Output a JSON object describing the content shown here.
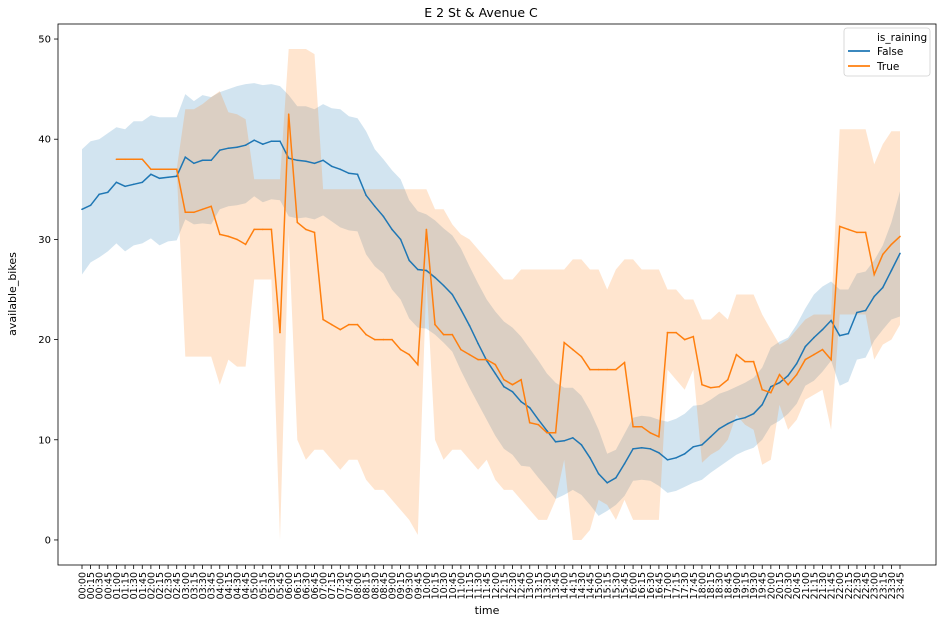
{
  "chart_data": {
    "type": "line",
    "title": "E 2 St & Avenue C",
    "xlabel": "time",
    "ylabel": "available_bikes",
    "ylim": [
      -2.5,
      51.5
    ],
    "yticks": [
      0,
      10,
      20,
      30,
      40,
      50
    ],
    "grid": false,
    "legend": {
      "title": "is_raining",
      "placement": "top-right",
      "entries": [
        "False",
        "True"
      ]
    },
    "x": [
      "00:00",
      "00:15",
      "00:30",
      "00:45",
      "01:00",
      "01:15",
      "01:30",
      "01:45",
      "02:00",
      "02:15",
      "02:30",
      "02:45",
      "03:00",
      "03:15",
      "03:30",
      "03:45",
      "04:00",
      "04:15",
      "04:30",
      "04:45",
      "05:00",
      "05:15",
      "05:30",
      "05:45",
      "06:00",
      "06:15",
      "06:30",
      "06:45",
      "07:00",
      "07:15",
      "07:30",
      "07:45",
      "08:00",
      "08:15",
      "08:30",
      "08:45",
      "09:00",
      "09:15",
      "09:30",
      "09:45",
      "10:00",
      "10:15",
      "10:30",
      "10:45",
      "11:00",
      "11:15",
      "11:30",
      "11:45",
      "12:00",
      "12:15",
      "12:30",
      "12:45",
      "13:00",
      "13:15",
      "13:30",
      "13:45",
      "14:00",
      "14:15",
      "14:30",
      "14:45",
      "15:00",
      "15:15",
      "15:30",
      "15:45",
      "16:00",
      "16:15",
      "16:30",
      "16:45",
      "17:00",
      "17:15",
      "17:30",
      "17:45",
      "18:00",
      "18:15",
      "18:30",
      "18:45",
      "19:00",
      "19:15",
      "19:30",
      "19:45",
      "20:00",
      "20:15",
      "20:30",
      "20:45",
      "21:00",
      "21:15",
      "21:30",
      "21:45",
      "22:00",
      "22:15",
      "22:30",
      "22:45",
      "23:00",
      "23:15",
      "23:30",
      "23:45"
    ],
    "series": [
      {
        "name": "False",
        "color": "#1f77b4",
        "values": [
          33.0,
          33.4,
          34.5,
          34.7,
          35.7,
          35.3,
          35.5,
          35.7,
          36.5,
          36.1,
          36.2,
          36.3,
          38.2,
          37.6,
          37.9,
          37.9,
          38.9,
          39.1,
          39.2,
          39.4,
          39.9,
          39.5,
          39.8,
          39.8,
          38.1,
          37.9,
          37.8,
          37.6,
          37.9,
          37.3,
          37.0,
          36.6,
          36.5,
          34.4,
          33.3,
          32.3,
          31.0,
          30.0,
          27.9,
          27.0,
          26.9,
          26.2,
          25.4,
          24.5,
          23.0,
          21.4,
          19.6,
          17.9,
          16.6,
          15.3,
          14.8,
          13.8,
          13.2,
          12.0,
          10.9,
          9.8,
          9.9,
          10.2,
          9.5,
          8.2,
          6.6,
          5.7,
          6.2,
          7.6,
          9.1,
          9.2,
          9.1,
          8.7,
          8.0,
          8.2,
          8.6,
          9.3,
          9.5,
          10.3,
          11.1,
          11.6,
          12.0,
          12.2,
          12.6,
          13.5,
          15.3,
          15.7,
          16.4,
          17.6,
          19.3,
          20.2,
          21.0,
          21.9,
          20.4,
          20.6,
          22.7,
          22.9,
          24.3,
          25.2,
          26.9,
          28.6
        ],
        "ci_upper": [
          39.0,
          39.8,
          40.0,
          40.6,
          41.2,
          41.0,
          41.8,
          41.8,
          42.4,
          42.2,
          42.2,
          42.2,
          44.5,
          43.8,
          44.4,
          44.2,
          44.7,
          45.0,
          45.3,
          45.5,
          45.6,
          45.4,
          45.5,
          45.3,
          44.4,
          43.3,
          43.3,
          43.0,
          43.5,
          43.1,
          43.0,
          42.3,
          42.1,
          40.8,
          39.0,
          38.0,
          36.9,
          36.0,
          33.9,
          32.8,
          32.5,
          31.9,
          31.1,
          30.4,
          29.1,
          27.3,
          25.6,
          24.0,
          22.8,
          21.8,
          21.2,
          20.3,
          19.1,
          17.9,
          16.6,
          15.7,
          15.2,
          15.2,
          14.4,
          12.9,
          11.0,
          8.6,
          9.0,
          10.6,
          12.2,
          12.4,
          12.3,
          12.0,
          11.8,
          12.1,
          12.6,
          13.4,
          13.5,
          14.0,
          14.6,
          14.9,
          15.3,
          15.7,
          16.2,
          17.2,
          19.2,
          19.8,
          20.2,
          21.5,
          23.1,
          24.5,
          25.3,
          25.8,
          25.0,
          25.0,
          26.6,
          26.8,
          27.9,
          29.4,
          31.7,
          34.8
        ],
        "ci_lower": [
          26.5,
          27.7,
          28.2,
          28.8,
          29.6,
          28.8,
          29.4,
          29.6,
          30.1,
          29.4,
          29.8,
          29.9,
          32.0,
          31.5,
          31.6,
          31.5,
          33.0,
          33.3,
          33.4,
          33.6,
          34.3,
          33.7,
          34.0,
          33.9,
          32.3,
          32.1,
          32.2,
          32.0,
          32.4,
          31.8,
          31.2,
          30.9,
          30.8,
          28.5,
          27.3,
          26.6,
          25.0,
          24.0,
          22.1,
          21.2,
          21.1,
          20.5,
          19.7,
          18.8,
          16.9,
          15.2,
          13.6,
          12.0,
          10.4,
          9.1,
          8.5,
          7.4,
          7.3,
          6.2,
          5.2,
          4.1,
          4.5,
          5.0,
          4.5,
          3.5,
          2.4,
          2.9,
          3.5,
          4.4,
          5.9,
          6.0,
          5.9,
          5.4,
          4.7,
          4.9,
          5.3,
          5.7,
          6.0,
          6.7,
          7.3,
          7.9,
          8.5,
          8.9,
          9.2,
          10.0,
          11.4,
          11.9,
          12.6,
          13.6,
          15.4,
          15.9,
          16.8,
          17.9,
          15.4,
          15.8,
          18.0,
          18.2,
          19.9,
          21.0,
          22.0,
          22.3
        ]
      },
      {
        "name": "True",
        "color": "#ff7f0e",
        "values": [
          null,
          null,
          null,
          null,
          38.0,
          38.0,
          38.0,
          38.0,
          37.0,
          37.0,
          37.0,
          37.0,
          32.7,
          32.7,
          33.0,
          33.3,
          30.5,
          30.3,
          30.0,
          29.5,
          31.0,
          31.0,
          31.0,
          20.7,
          42.5,
          31.7,
          31.0,
          30.7,
          22.0,
          21.5,
          21.0,
          21.5,
          21.5,
          20.5,
          20.0,
          20.0,
          20.0,
          19.0,
          18.5,
          17.5,
          31.0,
          21.5,
          20.5,
          20.5,
          19.0,
          18.5,
          18.0,
          18.0,
          17.5,
          16.0,
          15.5,
          16.0,
          11.7,
          11.5,
          10.7,
          10.7,
          19.7,
          19.0,
          18.3,
          17.0,
          17.0,
          17.0,
          17.0,
          17.7,
          11.3,
          11.3,
          10.7,
          10.3,
          20.7,
          20.7,
          20.0,
          20.3,
          15.5,
          15.2,
          15.3,
          16.0,
          18.5,
          17.8,
          17.8,
          15.0,
          14.7,
          16.5,
          15.5,
          16.5,
          18.0,
          18.5,
          19.0,
          18.0,
          31.3,
          31.0,
          30.7,
          30.7,
          26.5,
          28.5,
          29.5,
          30.3
        ],
        "ci_upper": [
          null,
          null,
          null,
          null,
          38.0,
          38.0,
          38.0,
          38.0,
          37.0,
          37.0,
          37.0,
          37.0,
          43.0,
          43.0,
          43.5,
          44.2,
          44.8,
          42.7,
          42.5,
          42.0,
          36.0,
          36.0,
          36.0,
          36.0,
          49.0,
          49.0,
          49.0,
          48.5,
          35.0,
          35.0,
          35.0,
          35.0,
          35.0,
          35.0,
          35.0,
          35.0,
          35.0,
          35.0,
          35.0,
          35.0,
          35.0,
          33.0,
          33.0,
          31.5,
          30.5,
          30.0,
          29.0,
          28.0,
          27.0,
          26.0,
          26.0,
          27.0,
          27.0,
          27.0,
          27.0,
          27.0,
          27.0,
          28.0,
          28.0,
          27.0,
          27.0,
          25.0,
          27.0,
          28.0,
          28.0,
          27.0,
          27.0,
          27.0,
          25.0,
          25.0,
          24.0,
          24.0,
          22.0,
          22.0,
          22.8,
          22.0,
          24.5,
          24.5,
          24.5,
          22.5,
          21.0,
          19.5,
          20.0,
          21.0,
          22.0,
          22.5,
          22.5,
          22.5,
          41.0,
          41.0,
          41.0,
          41.0,
          37.5,
          39.5,
          40.8,
          40.8
        ],
        "ci_lower": [
          null,
          null,
          null,
          null,
          38.0,
          38.0,
          38.0,
          38.0,
          37.0,
          37.0,
          37.0,
          37.0,
          18.3,
          18.3,
          18.3,
          18.3,
          15.5,
          18.0,
          17.3,
          17.3,
          26.0,
          26.0,
          26.0,
          0.0,
          30.5,
          10.0,
          8.0,
          9.0,
          9.0,
          8.0,
          7.0,
          8.0,
          8.0,
          6.0,
          5.0,
          5.0,
          4.0,
          3.0,
          2.0,
          0.5,
          26.0,
          10.0,
          8.0,
          9.0,
          9.0,
          8.0,
          7.0,
          8.0,
          6.0,
          5.0,
          5.0,
          4.0,
          3.0,
          2.0,
          2.0,
          4.0,
          8.0,
          0.0,
          0.0,
          1.0,
          4.0,
          3.5,
          2.0,
          4.0,
          2.0,
          2.0,
          2.0,
          2.0,
          17.0,
          16.0,
          15.0,
          17.0,
          7.7,
          8.5,
          9.0,
          10.0,
          12.5,
          11.5,
          11.0,
          7.5,
          8.0,
          13.5,
          11.0,
          12.0,
          14.0,
          14.5,
          15.0,
          11.0,
          22.5,
          22.5,
          22.5,
          22.5,
          18.0,
          19.5,
          20.0,
          21.5
        ]
      }
    ]
  }
}
